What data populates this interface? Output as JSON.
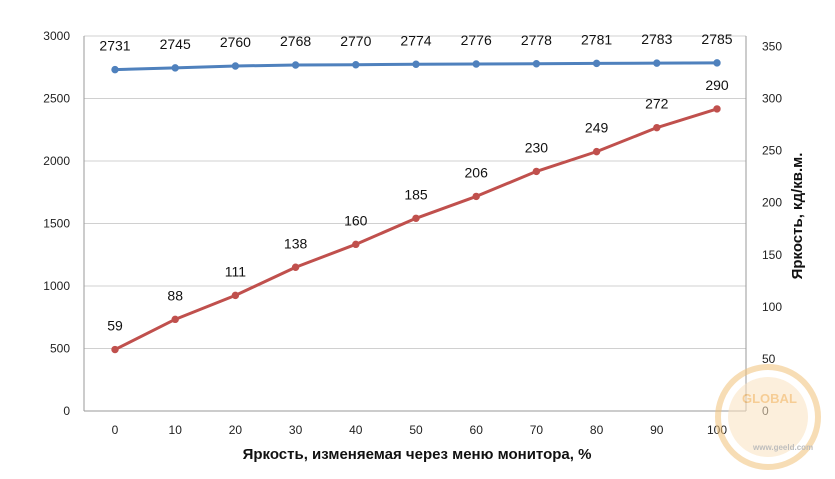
{
  "chart_data": {
    "type": "line",
    "title": "",
    "xlabel": "Яркость, изменяемая через меню монитора, %",
    "ylabel_left": "",
    "ylabel_right": "Яркость, кд/кв.м.",
    "x": [
      0,
      10,
      20,
      30,
      40,
      50,
      60,
      70,
      80,
      90,
      100
    ],
    "y_left_ticks": [
      0,
      500,
      1000,
      1500,
      2000,
      2500,
      3000
    ],
    "y_left_lim": [
      0,
      3000
    ],
    "y_right_ticks": [
      0,
      50,
      100,
      150,
      200,
      250,
      300,
      350
    ],
    "y_right_lim": [
      0,
      360
    ],
    "grid": true,
    "legend": "none",
    "series": [
      {
        "axis": "left",
        "color": "#4f81bd",
        "values": [
          2731,
          2745,
          2760,
          2768,
          2770,
          2774,
          2776,
          2778,
          2781,
          2783,
          2785
        ]
      },
      {
        "axis": "right",
        "color": "#c0504d",
        "values": [
          59,
          88,
          111,
          138,
          160,
          185,
          206,
          230,
          249,
          272,
          290
        ]
      }
    ]
  },
  "watermark": {
    "logo_text": "GLOBAL",
    "url_text": "www.geeld.com"
  }
}
